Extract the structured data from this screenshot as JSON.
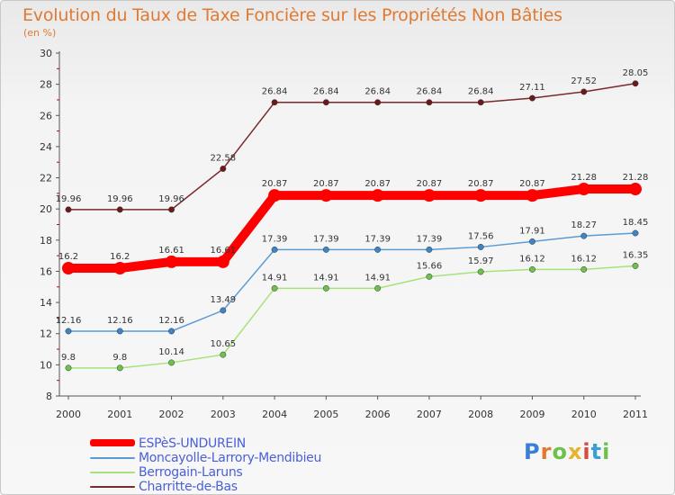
{
  "title": "Evolution du Taux de Taxe Foncière sur les Propriétés Non Bâties",
  "unit_label": "(en %)",
  "brand": {
    "letters": [
      "P",
      "r",
      "o",
      "x",
      "i",
      "t",
      "i"
    ],
    "colors": [
      "#3a7fd5",
      "#e07a32",
      "#6cc24a",
      "#e8b12e",
      "#d94b3d",
      "#3a9fd5",
      "#6cc24a"
    ]
  },
  "chart_data": {
    "type": "line",
    "x": [
      2000,
      2001,
      2002,
      2003,
      2004,
      2005,
      2006,
      2007,
      2008,
      2009,
      2010,
      2011
    ],
    "ylim": [
      8,
      30
    ],
    "yticks": [
      8,
      10,
      12,
      14,
      16,
      18,
      20,
      22,
      24,
      26,
      28,
      30
    ],
    "grid": false,
    "legend_position": "bottom-left",
    "series": [
      {
        "name": "ESPèS-UNDUREIN",
        "color": "#ff0000",
        "values": [
          16.2,
          16.2,
          16.61,
          16.61,
          20.87,
          20.87,
          20.87,
          20.87,
          20.87,
          20.87,
          21.28,
          21.28
        ],
        "labels": [
          "16.2",
          "16.2",
          "16.61",
          "16.61",
          "20.87",
          "20.87",
          "20.87",
          "20.87",
          "20.87",
          "20.87",
          "21.28",
          "21.28"
        ],
        "bold": true
      },
      {
        "name": "Moncayolle-Larrory-Mendibieu",
        "color": "#5b9bd5",
        "marker": "#3f84c7",
        "values": [
          12.16,
          12.16,
          12.16,
          13.49,
          17.39,
          17.39,
          17.39,
          17.39,
          17.56,
          17.91,
          18.27,
          18.45
        ],
        "labels": [
          "12.16",
          "12.16",
          "12.16",
          "13.49",
          "17.39",
          "17.39",
          "17.39",
          "17.39",
          "17.56",
          "17.91",
          "18.27",
          "18.45"
        ]
      },
      {
        "name": "Berrogain-Laruns",
        "color": "#a6e27a",
        "marker": "#6cc24a",
        "values": [
          9.8,
          9.8,
          10.14,
          10.65,
          14.91,
          14.91,
          14.91,
          15.66,
          15.97,
          16.12,
          16.12,
          16.35
        ],
        "labels": [
          "9.8",
          "9.8",
          "10.14",
          "10.65",
          "14.91",
          "14.91",
          "14.91",
          "15.66",
          "15.97",
          "16.12",
          "16.12",
          "16.35"
        ]
      },
      {
        "name": "Charritte-de-Bas",
        "color": "#7a2a2a",
        "marker": "#6b1a1a",
        "values": [
          19.96,
          19.96,
          19.96,
          22.58,
          26.84,
          26.84,
          26.84,
          26.84,
          26.84,
          27.11,
          27.52,
          28.05
        ],
        "labels": [
          "19.96",
          "19.96",
          "19.96",
          "22.58",
          "26.84",
          "26.84",
          "26.84",
          "26.84",
          "26.84",
          "27.11",
          "27.52",
          "28.05"
        ]
      }
    ]
  }
}
